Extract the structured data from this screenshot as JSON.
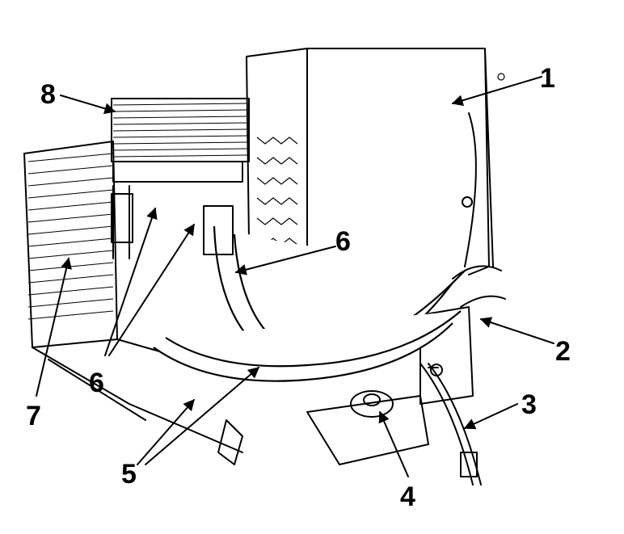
{
  "callouts": {
    "c1": "1",
    "c2": "2",
    "c3": "3",
    "c4": "4",
    "c5": "5",
    "c6a": "6",
    "c6b": "6",
    "c7": "7",
    "c8": "8"
  }
}
